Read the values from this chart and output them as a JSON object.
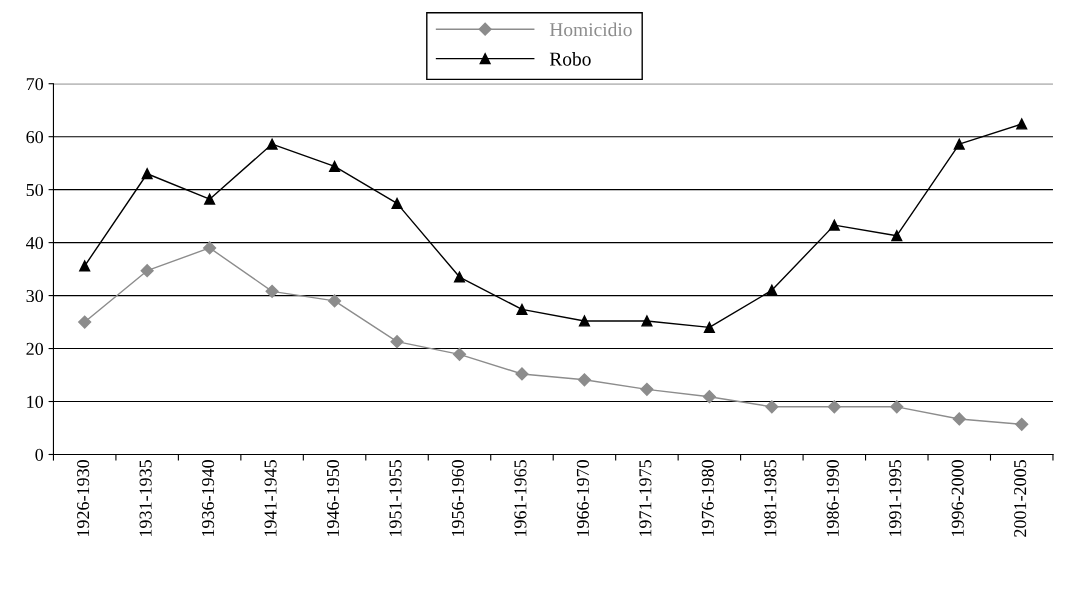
{
  "chart_data": {
    "type": "line",
    "categories": [
      "1926-1930",
      "1931-1935",
      "1936-1940",
      "1941-1945",
      "1946-1950",
      "1951-1955",
      "1956-1960",
      "1961-1965",
      "1966-1970",
      "1971-1975",
      "1976-1980",
      "1981-1985",
      "1986-1990",
      "1991-1995",
      "1996-2000",
      "2001-2005"
    ],
    "series": [
      {
        "name": "Homicidio",
        "color": "#8c8c8c",
        "marker": "diamond",
        "values": [
          25,
          34.7,
          39,
          30.8,
          29,
          21.3,
          18.9,
          15.2,
          14.1,
          12.3,
          10.9,
          9,
          9,
          9,
          6.7,
          5.7
        ]
      },
      {
        "name": "Robo",
        "color": "#000000",
        "marker": "triangle",
        "values": [
          35.6,
          53,
          48.2,
          58.6,
          54.4,
          47.4,
          33.5,
          27.4,
          25.2,
          25.2,
          24,
          31,
          43.3,
          41.3,
          58.6,
          62.4
        ]
      }
    ],
    "ylim": [
      0,
      70
    ],
    "yticks": [
      0,
      10,
      20,
      30,
      40,
      50,
      60,
      70
    ],
    "grid": "y",
    "legend": "top",
    "line_style": "solid"
  }
}
